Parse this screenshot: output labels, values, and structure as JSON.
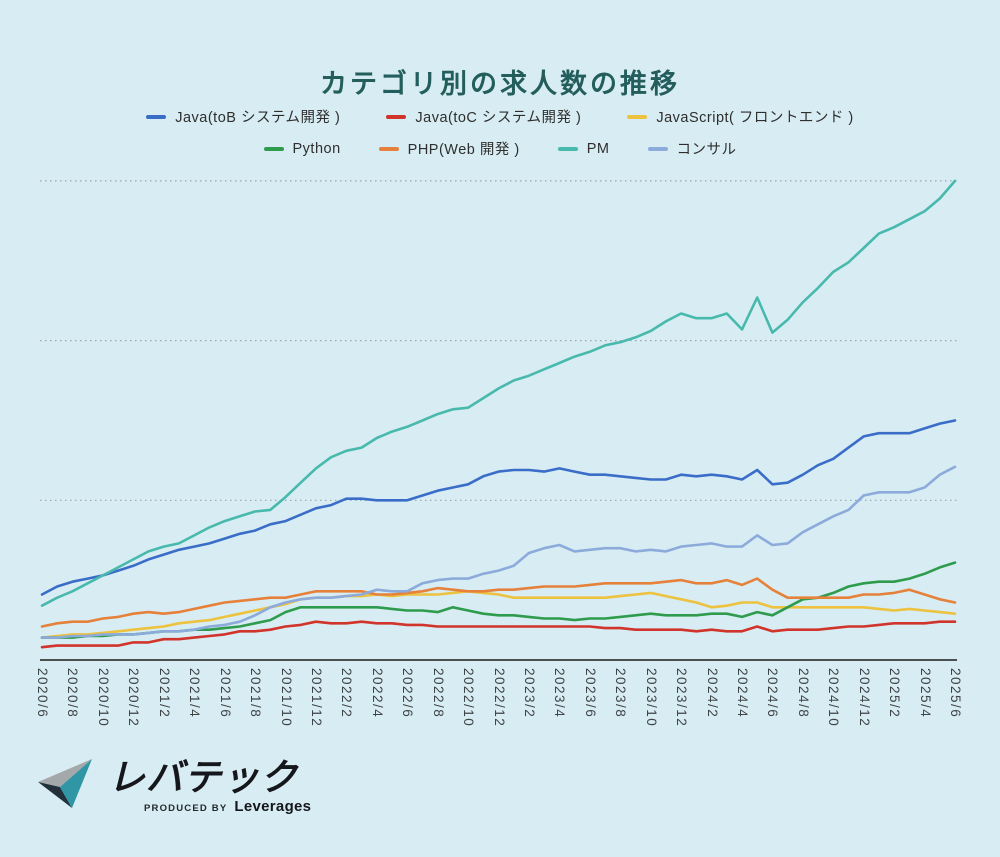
{
  "page": {
    "background": "#d8edf3",
    "grid_color": "#98a6ab",
    "axis_color": "#1b1b1b",
    "title_color": "#235e5c"
  },
  "title": {
    "text": "カテゴリ別の求人数の推移"
  },
  "legend": {
    "rows": [
      [
        {
          "name": "java-tob",
          "label": "Java(toB システム開発 )",
          "color": "#3a6dc8"
        },
        {
          "name": "java-toc",
          "label": "Java(toC システム開発 )",
          "color": "#d0342a"
        },
        {
          "name": "javascript",
          "label": "JavaScript( フロントエンド )",
          "color": "#ecc23f"
        }
      ],
      [
        {
          "name": "python",
          "label": "Python",
          "color": "#2e9b4d"
        },
        {
          "name": "php",
          "label": "PHP(Web 開発 )",
          "color": "#e6813b"
        },
        {
          "name": "pm",
          "label": "PM",
          "color": "#48b9ad"
        },
        {
          "name": "consul",
          "label": "コンサル",
          "color": "#8cabdb"
        }
      ]
    ]
  },
  "chart_data": {
    "type": "line",
    "title": "カテゴリ別の求人数の推移",
    "x_start": "2020/6",
    "x_end": "2025/6",
    "x_interval": "monthly",
    "x_tick_labels": [
      "2020/6",
      "2020/8",
      "2020/10",
      "2020/12",
      "2021/2",
      "2021/4",
      "2021/6",
      "2021/8",
      "2021/10",
      "2021/12",
      "2022/2",
      "2022/4",
      "2022/6",
      "2022/8",
      "2022/10",
      "2022/12",
      "2023/2",
      "2023/4",
      "2023/6",
      "2023/8",
      "2023/10",
      "2023/12",
      "2024/2",
      "2024/4",
      "2024/6",
      "2024/8",
      "2024/10",
      "2024/12",
      "2025/2",
      "2025/4",
      "2025/6"
    ],
    "y_unit": "relative job-posting volume (unlabeled gridlines = 1, 2, 3)",
    "ylim": [
      0,
      3.15
    ],
    "gridlines": [
      1,
      2,
      3
    ],
    "grid_style": "dotted",
    "legend_position": "top",
    "series": [
      {
        "name": "Java(toB システム開発 )",
        "color": "#3a6dc8",
        "values": [
          0.41,
          0.46,
          0.49,
          0.51,
          0.53,
          0.56,
          0.59,
          0.63,
          0.66,
          0.69,
          0.71,
          0.73,
          0.76,
          0.79,
          0.81,
          0.85,
          0.87,
          0.91,
          0.95,
          0.97,
          1.01,
          1.01,
          1.0,
          1.0,
          1.0,
          1.03,
          1.06,
          1.08,
          1.1,
          1.15,
          1.18,
          1.19,
          1.19,
          1.18,
          1.2,
          1.18,
          1.16,
          1.16,
          1.15,
          1.14,
          1.13,
          1.13,
          1.16,
          1.15,
          1.16,
          1.15,
          1.13,
          1.19,
          1.1,
          1.11,
          1.16,
          1.22,
          1.26,
          1.33,
          1.4,
          1.42,
          1.42,
          1.42,
          1.45,
          1.48,
          1.5
        ]
      },
      {
        "name": "Java(toC システム開発 )",
        "color": "#d0342a",
        "values": [
          0.08,
          0.09,
          0.09,
          0.09,
          0.09,
          0.09,
          0.11,
          0.11,
          0.13,
          0.13,
          0.14,
          0.15,
          0.16,
          0.18,
          0.18,
          0.19,
          0.21,
          0.22,
          0.24,
          0.23,
          0.23,
          0.24,
          0.23,
          0.23,
          0.22,
          0.22,
          0.21,
          0.21,
          0.21,
          0.21,
          0.21,
          0.21,
          0.21,
          0.21,
          0.21,
          0.21,
          0.21,
          0.2,
          0.2,
          0.19,
          0.19,
          0.19,
          0.19,
          0.18,
          0.19,
          0.18,
          0.18,
          0.21,
          0.18,
          0.19,
          0.19,
          0.19,
          0.2,
          0.21,
          0.21,
          0.22,
          0.23,
          0.23,
          0.23,
          0.24,
          0.24
        ]
      },
      {
        "name": "JavaScript( フロントエンド )",
        "color": "#ecc23f",
        "values": [
          0.14,
          0.15,
          0.16,
          0.16,
          0.17,
          0.18,
          0.19,
          0.2,
          0.21,
          0.23,
          0.24,
          0.25,
          0.27,
          0.29,
          0.31,
          0.33,
          0.35,
          0.38,
          0.39,
          0.39,
          0.4,
          0.4,
          0.41,
          0.4,
          0.41,
          0.41,
          0.41,
          0.42,
          0.43,
          0.42,
          0.41,
          0.39,
          0.39,
          0.39,
          0.39,
          0.39,
          0.39,
          0.39,
          0.4,
          0.41,
          0.42,
          0.4,
          0.38,
          0.36,
          0.33,
          0.34,
          0.36,
          0.36,
          0.33,
          0.33,
          0.33,
          0.33,
          0.33,
          0.33,
          0.33,
          0.32,
          0.31,
          0.32,
          0.31,
          0.3,
          0.29
        ]
      },
      {
        "name": "Python",
        "color": "#2e9b4d",
        "values": [
          0.14,
          0.14,
          0.14,
          0.15,
          0.15,
          0.16,
          0.16,
          0.17,
          0.18,
          0.18,
          0.19,
          0.19,
          0.2,
          0.21,
          0.23,
          0.25,
          0.3,
          0.33,
          0.33,
          0.33,
          0.33,
          0.33,
          0.33,
          0.32,
          0.31,
          0.31,
          0.3,
          0.33,
          0.31,
          0.29,
          0.28,
          0.28,
          0.27,
          0.26,
          0.26,
          0.25,
          0.26,
          0.26,
          0.27,
          0.28,
          0.29,
          0.28,
          0.28,
          0.28,
          0.29,
          0.29,
          0.27,
          0.3,
          0.28,
          0.33,
          0.38,
          0.39,
          0.42,
          0.46,
          0.48,
          0.49,
          0.49,
          0.51,
          0.54,
          0.58,
          0.61
        ]
      },
      {
        "name": "PHP(Web 開発 )",
        "color": "#e6813b",
        "values": [
          0.21,
          0.23,
          0.24,
          0.24,
          0.26,
          0.27,
          0.29,
          0.3,
          0.29,
          0.3,
          0.32,
          0.34,
          0.36,
          0.37,
          0.38,
          0.39,
          0.39,
          0.41,
          0.43,
          0.43,
          0.43,
          0.43,
          0.41,
          0.41,
          0.42,
          0.43,
          0.45,
          0.44,
          0.43,
          0.43,
          0.44,
          0.44,
          0.45,
          0.46,
          0.46,
          0.46,
          0.47,
          0.48,
          0.48,
          0.48,
          0.48,
          0.49,
          0.5,
          0.48,
          0.48,
          0.5,
          0.47,
          0.51,
          0.44,
          0.39,
          0.39,
          0.39,
          0.39,
          0.39,
          0.41,
          0.41,
          0.42,
          0.44,
          0.41,
          0.38,
          0.36
        ]
      },
      {
        "name": "PM",
        "color": "#48b9ad",
        "values": [
          0.34,
          0.39,
          0.43,
          0.48,
          0.53,
          0.58,
          0.63,
          0.68,
          0.71,
          0.73,
          0.78,
          0.83,
          0.87,
          0.9,
          0.93,
          0.94,
          1.02,
          1.11,
          1.2,
          1.27,
          1.31,
          1.33,
          1.39,
          1.43,
          1.46,
          1.5,
          1.54,
          1.57,
          1.58,
          1.64,
          1.7,
          1.75,
          1.78,
          1.82,
          1.86,
          1.9,
          1.93,
          1.97,
          1.99,
          2.02,
          2.06,
          2.12,
          2.17,
          2.14,
          2.14,
          2.17,
          2.07,
          2.27,
          2.05,
          2.13,
          2.24,
          2.33,
          2.43,
          2.49,
          2.58,
          2.67,
          2.71,
          2.76,
          2.81,
          2.89,
          3.0
        ]
      },
      {
        "name": "コンサル",
        "color": "#8cabdb",
        "values": [
          0.14,
          0.14,
          0.15,
          0.15,
          0.16,
          0.16,
          0.16,
          0.17,
          0.18,
          0.18,
          0.19,
          0.21,
          0.22,
          0.24,
          0.28,
          0.33,
          0.36,
          0.38,
          0.39,
          0.39,
          0.4,
          0.41,
          0.44,
          0.43,
          0.43,
          0.48,
          0.5,
          0.51,
          0.51,
          0.54,
          0.56,
          0.59,
          0.67,
          0.7,
          0.72,
          0.68,
          0.69,
          0.7,
          0.7,
          0.68,
          0.69,
          0.68,
          0.71,
          0.72,
          0.73,
          0.71,
          0.71,
          0.78,
          0.72,
          0.73,
          0.8,
          0.85,
          0.9,
          0.94,
          1.03,
          1.05,
          1.05,
          1.05,
          1.08,
          1.16,
          1.21
        ]
      }
    ]
  },
  "logo": {
    "name": "レバテック",
    "produced_by": "PRODUCED BY",
    "company": "Leverages",
    "icon_teal": "#2e96a5",
    "icon_dark": "#22303c",
    "icon_gray": "#a5a8aa"
  }
}
